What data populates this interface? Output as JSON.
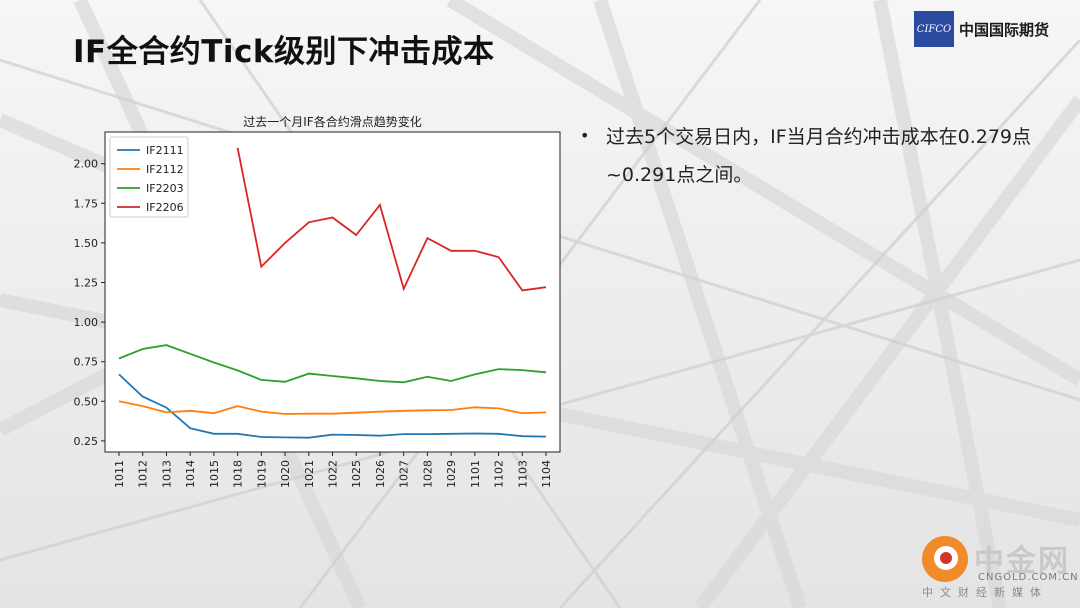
{
  "slide": {
    "title": "IF全合约Tick级别下冲击成本",
    "logo_mark": "CIFCO",
    "logo_text": "中国国际期货",
    "bullet_text": "过去5个交易日内，IF当月合约冲击成本在0.279点~0.291点之间。",
    "watermark_name": "中金网",
    "watermark_site": "CNGOLD.COM.CN",
    "watermark_sub": "中文财经新媒体"
  },
  "chart_data": {
    "type": "line",
    "title": "过去一个月IF各合约滑点趋势变化",
    "xlabel": "",
    "ylabel": "",
    "categories": [
      "1011",
      "1012",
      "1013",
      "1014",
      "1015",
      "1018",
      "1019",
      "1020",
      "1021",
      "1022",
      "1025",
      "1026",
      "1027",
      "1028",
      "1029",
      "1101",
      "1102",
      "1103",
      "1104"
    ],
    "ylim": [
      0.18,
      2.2
    ],
    "yticks": [
      0.25,
      0.5,
      0.75,
      1.0,
      1.25,
      1.5,
      1.75,
      2.0
    ],
    "ytick_labels": [
      "0.25",
      "0.50",
      "0.75",
      "1.00",
      "1.25",
      "1.50",
      "1.75",
      "2.00"
    ],
    "legend_position": "top-left",
    "grid": false,
    "series": [
      {
        "name": "IF2111",
        "color": "#1f77b4",
        "values": [
          0.67,
          0.53,
          0.46,
          0.33,
          0.295,
          0.295,
          0.275,
          0.272,
          0.27,
          0.29,
          0.287,
          0.283,
          0.293,
          0.293,
          0.295,
          0.297,
          0.295,
          0.28,
          0.277
        ]
      },
      {
        "name": "IF2112",
        "color": "#ff7f0e",
        "values": [
          0.5,
          0.47,
          0.43,
          0.44,
          0.425,
          0.47,
          0.435,
          0.42,
          0.422,
          0.422,
          0.428,
          0.435,
          0.44,
          0.443,
          0.445,
          0.462,
          0.455,
          0.425,
          0.43
        ]
      },
      {
        "name": "IF2203",
        "color": "#2ca02c",
        "values": [
          0.77,
          0.83,
          0.855,
          0.8,
          0.745,
          0.695,
          0.635,
          0.623,
          0.675,
          0.66,
          0.645,
          0.628,
          0.62,
          0.655,
          0.628,
          0.67,
          0.703,
          0.697,
          0.683
        ]
      },
      {
        "name": "IF2206",
        "color": "#d62728",
        "values": [
          null,
          null,
          null,
          null,
          null,
          2.1,
          1.35,
          1.5,
          1.63,
          1.66,
          1.55,
          1.74,
          1.21,
          1.53,
          1.45,
          1.45,
          1.41,
          1.2,
          1.22
        ]
      }
    ]
  }
}
